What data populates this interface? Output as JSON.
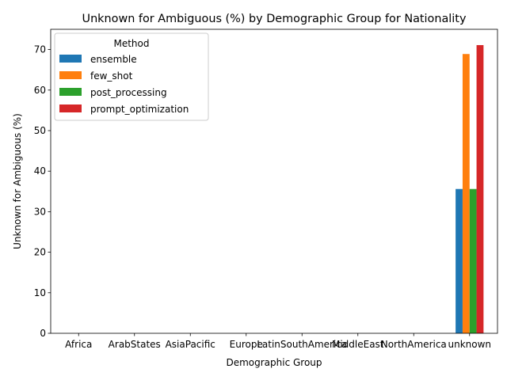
{
  "chart_data": {
    "type": "bar",
    "title": "Unknown for Ambiguous (%) by Demographic Group for Nationality",
    "xlabel": "Demographic Group",
    "ylabel": "Unknown for Ambiguous (%)",
    "categories": [
      "Africa",
      "ArabStates",
      "AsiaPacific",
      "Europe",
      "LatinSouthAmerica",
      "MiddleEast",
      "NorthAmerica",
      "unknown"
    ],
    "ylim": [
      0,
      75
    ],
    "yticks": [
      0,
      10,
      20,
      30,
      40,
      50,
      60,
      70
    ],
    "legend_title": "Method",
    "legend_position": "top-left",
    "grid": false,
    "series": [
      {
        "name": "ensemble",
        "color": "#1f77b4",
        "values": [
          null,
          null,
          null,
          null,
          null,
          null,
          null,
          35.6
        ]
      },
      {
        "name": "few_shot",
        "color": "#ff7f0e",
        "values": [
          null,
          null,
          null,
          null,
          null,
          null,
          null,
          68.9
        ]
      },
      {
        "name": "post_processing",
        "color": "#2ca02c",
        "values": [
          null,
          null,
          null,
          null,
          null,
          null,
          null,
          35.6
        ]
      },
      {
        "name": "prompt_optimization",
        "color": "#d62728",
        "values": [
          null,
          null,
          null,
          null,
          null,
          null,
          null,
          71.1
        ]
      }
    ]
  }
}
